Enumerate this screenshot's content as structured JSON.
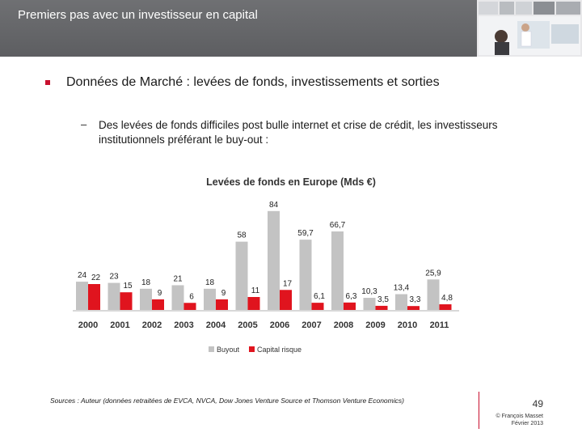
{
  "header": {
    "title": "Premiers pas avec un investisseur en capital"
  },
  "bullet": {
    "text": "Données de Marché : levées de fonds, investissements et sorties"
  },
  "sub_bullet": {
    "dash": "–",
    "text": "Des levées de fonds difficiles post bulle internet et crise de crédit, les investisseurs institutionnels préférant le buy-out :"
  },
  "chart_data": {
    "type": "bar",
    "title": "Levées de fonds en Europe (Mds €)",
    "categories": [
      "2000",
      "2001",
      "2002",
      "2003",
      "2004",
      "2005",
      "2006",
      "2007",
      "2008",
      "2009",
      "2010",
      "2011"
    ],
    "series": [
      {
        "name": "Buyout",
        "color": "#c3c3c3",
        "values": [
          24,
          23,
          18,
          21,
          18,
          58,
          84,
          59.7,
          66.7,
          10.3,
          13.4,
          25.9
        ],
        "labels": [
          "24",
          "23",
          "18",
          "21",
          "18",
          "58",
          "84",
          "59,7",
          "66,7",
          "10,3",
          "13,4",
          "25,9"
        ]
      },
      {
        "name": "Capital risque",
        "color": "#e0141e",
        "values": [
          22,
          15,
          9,
          6,
          9,
          11,
          17,
          6.1,
          6.3,
          3.5,
          3.3,
          4.8
        ],
        "labels": [
          "22",
          "15",
          "9",
          "6",
          "9",
          "11",
          "17",
          "6,1",
          "6,3",
          "3,5",
          "3,3",
          "4,8"
        ]
      }
    ],
    "ylim": [
      0,
      88
    ],
    "legend_position": "bottom",
    "grid": false
  },
  "footer": {
    "sources": "Sources : Auteur (données retraitées de EVCA, NVCA, Dow Jones Venture Source et Thomson Venture Economics)",
    "page_number": "49",
    "copyright": "© François Masset",
    "date": "Février 2013"
  }
}
